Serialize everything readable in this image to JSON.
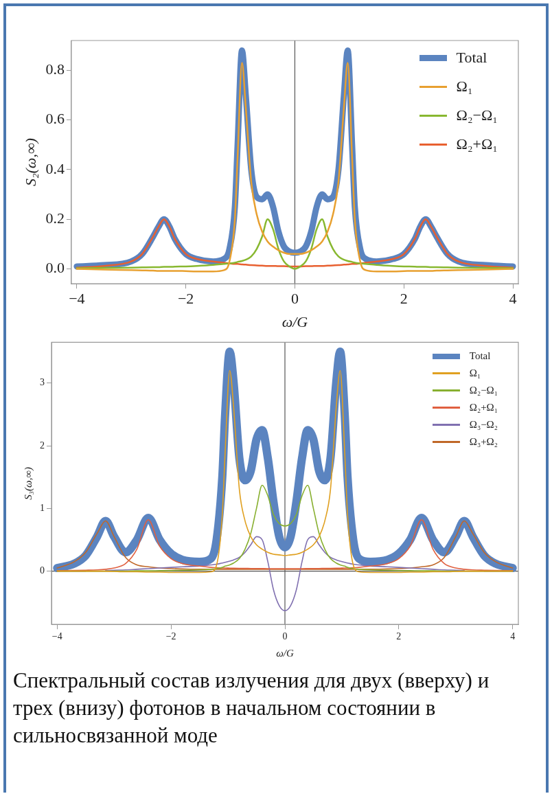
{
  "chart_data": [
    {
      "type": "line",
      "xlabel": "ω/G",
      "ylabel": "S₂(ω,∞)",
      "x": [
        -4,
        -3.5,
        -3,
        -2.8,
        -2.6,
        -2.5,
        -2.4,
        -2.3,
        -2.2,
        -2,
        -1.8,
        -1.5,
        -1.3,
        -1.2,
        -1.1,
        -1.05,
        -0.97,
        -0.9,
        -0.8,
        -0.7,
        -0.6,
        -0.5,
        -0.4,
        -0.3,
        -0.2,
        -0.1,
        0,
        0.1,
        0.2,
        0.3,
        0.4,
        0.5,
        0.6,
        0.7,
        0.8,
        0.9,
        0.97,
        1.05,
        1.1,
        1.2,
        1.3,
        1.5,
        1.8,
        2,
        2.2,
        2.3,
        2.4,
        2.5,
        2.6,
        2.8,
        3,
        3.5,
        4
      ],
      "series": [
        {
          "name": "Total",
          "color": "#5b84c0",
          "values": [
            0.01,
            0.015,
            0.03,
            0.06,
            0.13,
            0.17,
            0.2,
            0.17,
            0.12,
            0.06,
            0.04,
            0.03,
            0.04,
            0.08,
            0.25,
            0.5,
            0.88,
            0.7,
            0.4,
            0.29,
            0.28,
            0.3,
            0.25,
            0.15,
            0.09,
            0.07,
            0.065,
            0.07,
            0.09,
            0.15,
            0.25,
            0.3,
            0.28,
            0.29,
            0.4,
            0.7,
            0.88,
            0.5,
            0.25,
            0.08,
            0.04,
            0.03,
            0.04,
            0.06,
            0.12,
            0.17,
            0.2,
            0.17,
            0.13,
            0.06,
            0.03,
            0.015,
            0.01
          ]
        },
        {
          "name": "Ω₁",
          "color": "#e8a030",
          "values": [
            0,
            -0.003,
            -0.005,
            -0.006,
            -0.007,
            -0.008,
            -0.008,
            -0.008,
            -0.008,
            -0.009,
            -0.01,
            -0.01,
            -0.005,
            0.03,
            0.2,
            0.45,
            0.83,
            0.65,
            0.35,
            0.22,
            0.15,
            0.11,
            0.09,
            0.075,
            0.065,
            0.06,
            0.06,
            0.06,
            0.065,
            0.075,
            0.09,
            0.11,
            0.15,
            0.22,
            0.35,
            0.65,
            0.83,
            0.45,
            0.2,
            0.03,
            -0.005,
            -0.01,
            -0.01,
            -0.009,
            -0.008,
            -0.008,
            -0.008,
            -0.008,
            -0.007,
            -0.006,
            -0.005,
            -0.003,
            0
          ]
        },
        {
          "name": "Ω₂−Ω₁",
          "color": "#88b830",
          "values": [
            0.003,
            0.004,
            0.005,
            0.006,
            0.007,
            0.007,
            0.008,
            0.008,
            0.009,
            0.01,
            0.012,
            0.016,
            0.02,
            0.022,
            0.025,
            0.028,
            0.032,
            0.037,
            0.05,
            0.08,
            0.13,
            0.2,
            0.16,
            0.08,
            0.03,
            0.01,
            0,
            0.01,
            0.03,
            0.08,
            0.16,
            0.2,
            0.13,
            0.08,
            0.05,
            0.037,
            0.032,
            0.028,
            0.025,
            0.022,
            0.02,
            0.016,
            0.012,
            0.01,
            0.009,
            0.008,
            0.008,
            0.007,
            0.007,
            0.006,
            0.005,
            0.004,
            0.003
          ]
        },
        {
          "name": "Ω₂+Ω₁",
          "color": "#e86030",
          "values": [
            0.005,
            0.012,
            0.03,
            0.06,
            0.13,
            0.17,
            0.2,
            0.17,
            0.12,
            0.06,
            0.04,
            0.03,
            0.025,
            0.022,
            0.02,
            0.02,
            0.018,
            0.017,
            0.015,
            0.014,
            0.013,
            0.012,
            0.012,
            0.011,
            0.011,
            0.01,
            0.01,
            0.01,
            0.011,
            0.011,
            0.012,
            0.012,
            0.013,
            0.014,
            0.015,
            0.017,
            0.018,
            0.02,
            0.02,
            0.022,
            0.025,
            0.03,
            0.04,
            0.06,
            0.12,
            0.17,
            0.2,
            0.17,
            0.13,
            0.06,
            0.03,
            0.012,
            0.005
          ]
        }
      ],
      "xlim": [
        -4.1,
        4.1
      ],
      "xticks": [
        -4,
        -2,
        0,
        2,
        4
      ],
      "ylim": [
        -0.06,
        0.92
      ],
      "yticks": [
        {
          "value": 0,
          "label": "0.0"
        },
        0.2,
        0.4,
        0.6,
        0.8
      ],
      "ref_lines": [
        {
          "axis": "x",
          "value": 0,
          "color": "#555555"
        }
      ],
      "legend": "top right"
    },
    {
      "type": "line",
      "xlabel": "ω/G",
      "ylabel": "S₃(ω,∞)",
      "x": [
        -4,
        -3.7,
        -3.5,
        -3.3,
        -3.15,
        -3,
        -2.8,
        -2.6,
        -2.4,
        -2.2,
        -2,
        -1.8,
        -1.5,
        -1.3,
        -1.2,
        -1.1,
        -1.05,
        -0.97,
        -0.9,
        -0.8,
        -0.7,
        -0.6,
        -0.5,
        -0.4,
        -0.3,
        -0.2,
        -0.1,
        0,
        0.1,
        0.2,
        0.3,
        0.4,
        0.5,
        0.6,
        0.7,
        0.8,
        0.9,
        0.97,
        1.05,
        1.1,
        1.2,
        1.3,
        1.5,
        1.8,
        2,
        2.2,
        2.4,
        2.6,
        2.8,
        3,
        3.15,
        3.3,
        3.5,
        3.7,
        4
      ],
      "series": [
        {
          "name": "Total",
          "color": "#5b84c0",
          "values": [
            0.05,
            0.12,
            0.25,
            0.55,
            0.8,
            0.55,
            0.3,
            0.5,
            0.85,
            0.5,
            0.28,
            0.18,
            0.15,
            0.2,
            0.5,
            1.5,
            2.5,
            3.5,
            3,
            1.8,
            1.45,
            1.6,
            2.1,
            2.25,
            1.8,
            1.1,
            0.55,
            0.38,
            0.55,
            1.1,
            1.8,
            2.25,
            2.1,
            1.6,
            1.45,
            1.8,
            3,
            3.5,
            2.5,
            1.5,
            0.5,
            0.2,
            0.15,
            0.18,
            0.28,
            0.5,
            0.85,
            0.5,
            0.3,
            0.55,
            0.8,
            0.55,
            0.25,
            0.12,
            0.05
          ]
        },
        {
          "name": "Ω₁",
          "color": "#e0a020",
          "values": [
            0,
            0,
            0,
            0,
            0,
            -0.005,
            -0.01,
            -0.01,
            -0.015,
            -0.015,
            -0.02,
            -0.02,
            -0.02,
            -0.01,
            0.1,
            0.9,
            1.9,
            3.2,
            2.6,
            1.3,
            0.8,
            0.55,
            0.42,
            0.35,
            0.3,
            0.27,
            0.26,
            0.25,
            0.26,
            0.27,
            0.3,
            0.35,
            0.42,
            0.55,
            0.8,
            1.3,
            2.6,
            3.2,
            1.9,
            0.9,
            0.1,
            -0.01,
            -0.02,
            -0.02,
            -0.02,
            -0.015,
            -0.015,
            -0.01,
            -0.01,
            -0.005,
            0,
            0,
            0,
            0,
            0
          ]
        },
        {
          "name": "Ω₂−Ω₁",
          "color": "#88b030",
          "values": [
            0,
            0,
            0,
            0,
            0,
            0,
            0,
            0.005,
            0.005,
            0.008,
            0.01,
            0.015,
            0.02,
            0.03,
            0.04,
            0.06,
            0.08,
            0.1,
            0.13,
            0.2,
            0.35,
            0.6,
            1,
            1.37,
            1.2,
            0.9,
            0.76,
            0.72,
            0.76,
            0.9,
            1.2,
            1.37,
            1,
            0.6,
            0.35,
            0.2,
            0.13,
            0.1,
            0.08,
            0.06,
            0.04,
            0.03,
            0.02,
            0.015,
            0.01,
            0.008,
            0.005,
            0.005,
            0,
            0,
            0,
            0,
            0,
            0,
            0
          ]
        },
        {
          "name": "Ω₂+Ω₁",
          "color": "#e06040",
          "values": [
            0.01,
            0.012,
            0.015,
            0.02,
            0.03,
            0.05,
            0.12,
            0.35,
            0.82,
            0.4,
            0.2,
            0.12,
            0.08,
            0.06,
            0.055,
            0.05,
            0.05,
            0.048,
            0.047,
            0.045,
            0.044,
            0.043,
            0.042,
            0.041,
            0.04,
            0.04,
            0.04,
            0.04,
            0.04,
            0.04,
            0.04,
            0.041,
            0.042,
            0.043,
            0.044,
            0.045,
            0.047,
            0.048,
            0.05,
            0.05,
            0.055,
            0.06,
            0.08,
            0.12,
            0.2,
            0.4,
            0.82,
            0.35,
            0.12,
            0.05,
            0.03,
            0.02,
            0.015,
            0.012,
            0.01
          ]
        },
        {
          "name": "Ω₃−Ω₂",
          "color": "#8070b0",
          "values": [
            0,
            0,
            0,
            null,
            0.01,
            0.015,
            0.02,
            0.03,
            0.04,
            0.05,
            0.06,
            0.07,
            0.08,
            0.1,
            0.11,
            0.13,
            0.14,
            0.16,
            0.18,
            0.22,
            0.3,
            0.42,
            0.55,
            0.5,
            0.15,
            -0.3,
            -0.55,
            -0.63,
            -0.55,
            -0.3,
            0.15,
            0.5,
            0.55,
            0.42,
            0.3,
            0.22,
            0.18,
            0.16,
            0.14,
            0.13,
            0.11,
            0.1,
            0.08,
            0.07,
            0.06,
            0.05,
            0.04,
            0.03,
            0.02,
            0.015,
            0.01,
            null,
            0,
            0,
            0
          ]
        },
        {
          "name": "Ω₃+Ω₂",
          "color": "#c06828",
          "values": [
            0.05,
            0.15,
            0.3,
            0.6,
            0.8,
            0.55,
            0.22,
            0.1,
            0.07,
            0.05,
            0.04,
            0.035,
            0.03,
            0.03,
            0.03,
            0.03,
            0.03,
            0.03,
            0.03,
            0.03,
            0.03,
            0.03,
            0.03,
            0.03,
            0.03,
            0.03,
            0.03,
            0.03,
            0.03,
            0.03,
            0.03,
            0.03,
            0.03,
            0.03,
            0.03,
            0.03,
            0.03,
            0.03,
            0.03,
            0.03,
            0.03,
            0.03,
            0.03,
            0.035,
            0.04,
            0.05,
            0.07,
            0.1,
            0.22,
            0.55,
            0.8,
            0.6,
            0.3,
            0.15,
            0.05
          ]
        }
      ],
      "xlim": [
        -4.1,
        4.1
      ],
      "xticks": [
        -4,
        -2,
        0,
        2,
        4
      ],
      "ylim": [
        -0.85,
        3.65
      ],
      "yticks": [
        0,
        1,
        2,
        3
      ],
      "ref_lines": [
        {
          "axis": "x",
          "value": 0,
          "color": "#555555"
        },
        {
          "axis": "y",
          "value": 0,
          "color": "#555555"
        }
      ],
      "legend": "top right",
      "annotations": [
        "Спектральный состав излучения для двух (вверху) и трех (внизу) фотонов в начальном состоянии в сильносвязанной моде"
      ]
    }
  ]
}
